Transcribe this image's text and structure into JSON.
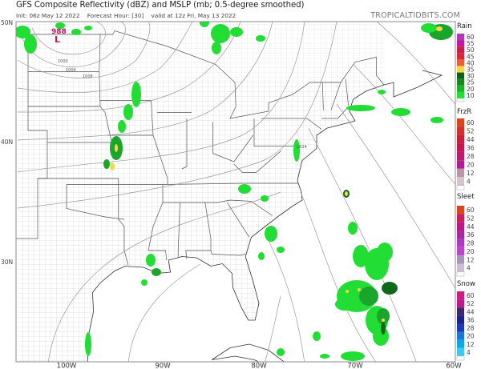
{
  "header": {
    "title": "GFS Composite Reflectivity (dBZ) and MSLP (mb; 0.5-degree smoothed)",
    "init": "Init: 06z May 12 2022",
    "forecast_hour": "Forecast Hour: [30]",
    "valid": "valid at 12z Fri, May 13 2022",
    "brand": "TROPICALTIDBITS.COM"
  },
  "axes": {
    "lat_labels": [
      "50N",
      "40N",
      "30N"
    ],
    "lon_labels": [
      "100W",
      "90W",
      "80W",
      "70W",
      "60W"
    ]
  },
  "isobar_labels": {
    "low_value": "988",
    "low_marker": "L",
    "l1000": "1000",
    "l1004": "1004",
    "l1008": "1008",
    "l1024": "1024"
  },
  "legends": [
    {
      "title": "Rain",
      "labels": [
        "60",
        "55",
        "50",
        "45",
        "40",
        "35",
        "30",
        "25",
        "20",
        "10"
      ],
      "colors": [
        "#b03ab8",
        "#c2189a",
        "#c81e4a",
        "#d5263a",
        "#e8603a",
        "#f4d84a",
        "#0f5e1a",
        "#17881f",
        "#1fb02a",
        "#22e033"
      ]
    },
    {
      "title": "FrzR",
      "labels": [
        "60",
        "52",
        "44",
        "36",
        "28",
        "20",
        "12",
        "4"
      ],
      "colors": [
        "#d8461e",
        "#d03030",
        "#c8203c",
        "#c21850",
        "#bc1a70",
        "#b02090",
        "#b898a8",
        "#d6c4cc"
      ]
    },
    {
      "title": "Sleet",
      "labels": [
        "60",
        "52",
        "44",
        "36",
        "28",
        "20",
        "12",
        "4"
      ],
      "colors": [
        "#d8461e",
        "#c81e60",
        "#b81a80",
        "#a828a0",
        "#b038c0",
        "#b848c8",
        "#a898b8",
        "#c8c0d0"
      ]
    },
    {
      "title": "Snow",
      "labels": [
        "60",
        "52",
        "44",
        "36",
        "28",
        "20",
        "12",
        "4"
      ],
      "colors": [
        "#c81e80",
        "#c01890",
        "#3a2a6a",
        "#20208a",
        "#2038b0",
        "#1a78d0",
        "#10a8e0",
        "#40c8f0"
      ]
    }
  ],
  "colors": {
    "precip_light": "#22dd33",
    "precip_mid": "#1aa62a",
    "precip_dark": "#0e6a1a",
    "precip_core": "#f4d84a",
    "isobar": "#9a9a9a",
    "frame": "#888888"
  }
}
